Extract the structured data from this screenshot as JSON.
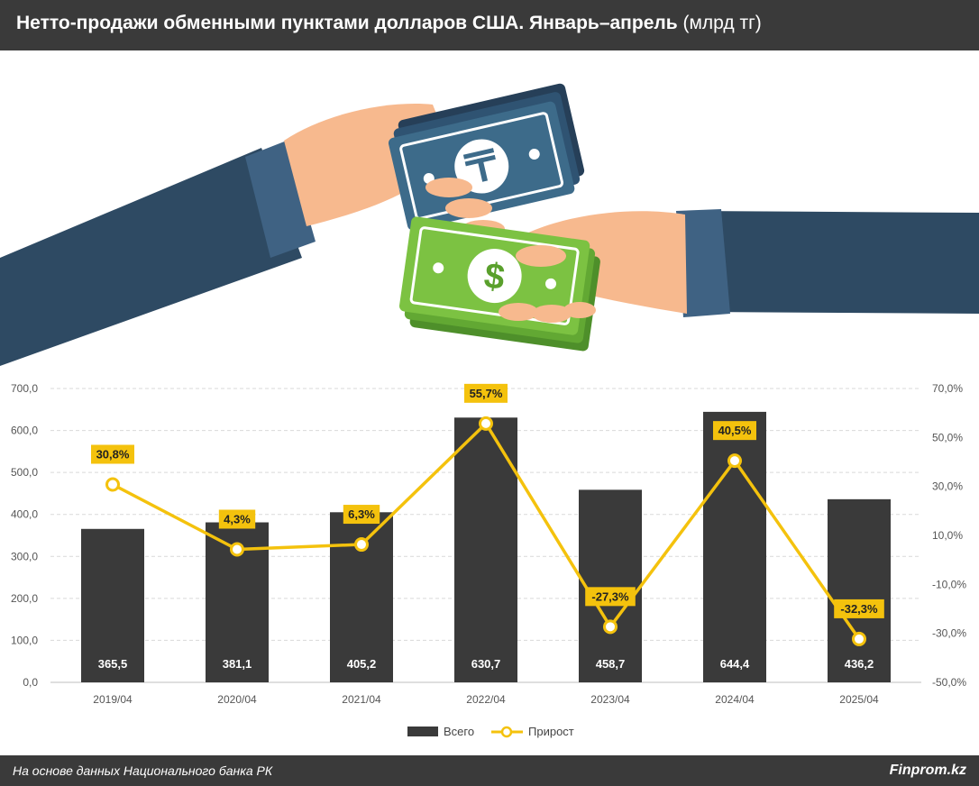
{
  "header": {
    "title": "Нетто-продажи обменными пунктами долларов США. Январь–апрель",
    "unit": "(млрд тг)"
  },
  "footer": {
    "source": "На основе данных Национального банка РК",
    "brand": "Finprom.kz"
  },
  "illustration": {
    "icons": [
      "hand-with-tenge-banknote-icon",
      "hand-with-dollar-banknote-icon"
    ],
    "colors": {
      "sleeve": "#2e4a63",
      "skin": "#f7b98e",
      "tenge_note": "#3d6b8a",
      "dollar_note": "#7cc242"
    }
  },
  "chart_data": {
    "type": "bar+line",
    "categories": [
      "2019/04",
      "2020/04",
      "2021/04",
      "2022/04",
      "2023/04",
      "2024/04",
      "2025/04"
    ],
    "series": [
      {
        "name": "Всего",
        "type": "bar",
        "axis": "left",
        "values": [
          365.5,
          381.1,
          405.2,
          630.7,
          458.7,
          644.4,
          436.2
        ],
        "labels": [
          "365,5",
          "381,1",
          "405,2",
          "630,7",
          "458,7",
          "644,4",
          "436,2"
        ],
        "color": "#3a3a3a"
      },
      {
        "name": "Прирост",
        "type": "line",
        "axis": "right",
        "values": [
          30.8,
          4.3,
          6.3,
          55.7,
          -27.3,
          40.5,
          -32.3
        ],
        "labels": [
          "30,8%",
          "4,3%",
          "6,3%",
          "55,7%",
          "-27,3%",
          "40,5%",
          "-32,3%"
        ],
        "color": "#f4c20d"
      }
    ],
    "y_left": {
      "min": 0,
      "max": 700,
      "ticks": [
        "0,0",
        "100,0",
        "200,0",
        "300,0",
        "400,0",
        "500,0",
        "600,0",
        "700,0"
      ]
    },
    "y_right": {
      "min": -50,
      "max": 70,
      "ticks": [
        "-50,0%",
        "-30,0%",
        "-10,0%",
        "10,0%",
        "30,0%",
        "50,0%",
        "70,0%"
      ]
    },
    "grid": true,
    "legend": "bottom-center"
  }
}
